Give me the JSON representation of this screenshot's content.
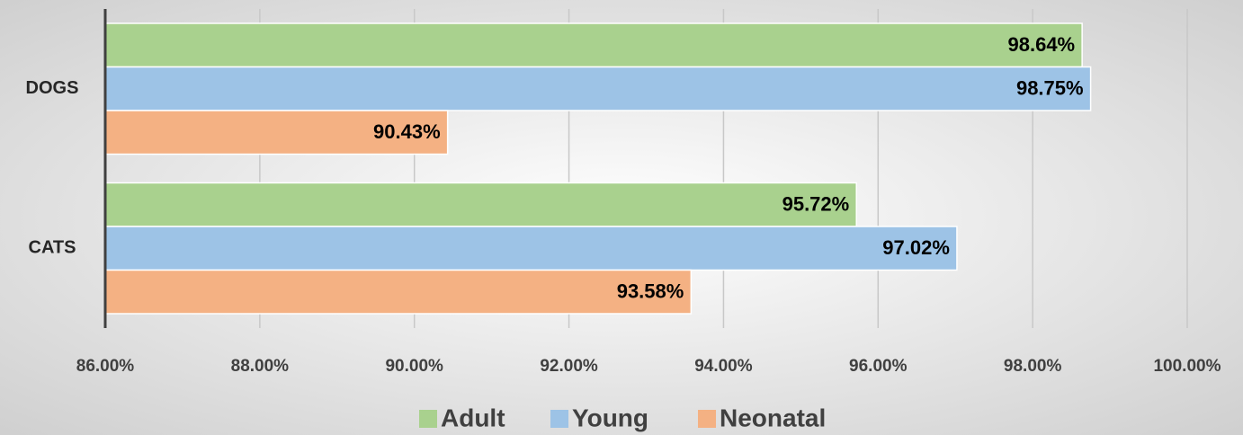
{
  "chart_data": {
    "type": "bar",
    "orientation": "horizontal",
    "categories": [
      "DOGS",
      "CATS"
    ],
    "series": [
      {
        "name": "Adult",
        "color": "#a9d18e",
        "values": [
          98.64,
          95.72
        ],
        "value_labels": [
          "98.64%",
          "95.72%"
        ]
      },
      {
        "name": "Young",
        "color": "#9dc3e6",
        "values": [
          98.75,
          97.02
        ],
        "value_labels": [
          "98.75%",
          "97.02%"
        ]
      },
      {
        "name": "Neonatal",
        "color": "#f4b183",
        "values": [
          90.43,
          93.58
        ],
        "value_labels": [
          "90.43%",
          "93.58%"
        ]
      }
    ],
    "xlim": [
      86,
      100
    ],
    "xticks": [
      {
        "value": 86,
        "label": "86.00%"
      },
      {
        "value": 88,
        "label": "88.00%"
      },
      {
        "value": 90,
        "label": "90.00%"
      },
      {
        "value": 92,
        "label": "92.00%"
      },
      {
        "value": 94,
        "label": "94.00%"
      },
      {
        "value": 96,
        "label": "96.00%"
      },
      {
        "value": 98,
        "label": "98.00%"
      },
      {
        "value": 100,
        "label": "100.00%"
      }
    ],
    "grid": true,
    "legend": "bottom"
  }
}
